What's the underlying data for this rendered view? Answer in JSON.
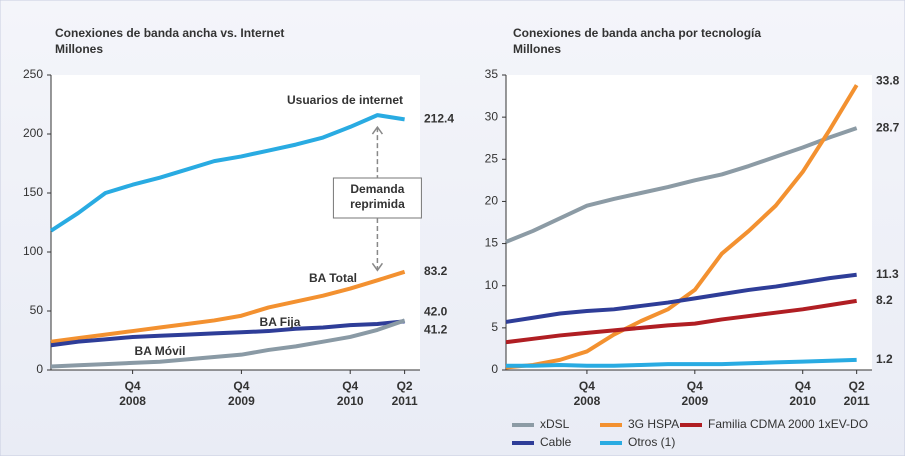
{
  "chart_data": [
    {
      "type": "line",
      "title": "Conexiones de banda ancha vs. Internet",
      "subtitle": "Millones",
      "categories": [
        null,
        null,
        null,
        [
          "Q4",
          "2008"
        ],
        null,
        null,
        null,
        [
          "Q4",
          "2009"
        ],
        null,
        null,
        null,
        [
          "Q4",
          "2010"
        ],
        null,
        [
          "Q2",
          "2011"
        ]
      ],
      "series": [
        {
          "name": "Usuarios de internet",
          "color": "#29abe2",
          "values": [
            118,
            133,
            150,
            157,
            163,
            170,
            177,
            181,
            186,
            191,
            197,
            206,
            216,
            212.4
          ],
          "value_labels": [
            null,
            null,
            null,
            null,
            null,
            null,
            null,
            null,
            null,
            null,
            null,
            null,
            null,
            "212.4"
          ]
        },
        {
          "name": "BA Total",
          "color": "#f39130",
          "values": [
            24,
            27,
            30,
            33,
            36,
            39,
            42,
            46,
            53,
            58,
            63,
            69,
            76,
            83.2
          ],
          "value_labels": [
            null,
            null,
            null,
            null,
            null,
            null,
            null,
            null,
            null,
            null,
            null,
            null,
            null,
            "83.2"
          ]
        },
        {
          "name": "BA Fija",
          "color": "#2e3d98",
          "values": [
            21,
            24,
            26,
            28,
            29,
            30,
            31,
            32,
            33,
            35,
            36,
            38,
            39,
            41.2
          ],
          "value_labels": [
            null,
            null,
            null,
            null,
            null,
            null,
            null,
            null,
            null,
            null,
            null,
            null,
            null,
            "41.2"
          ]
        },
        {
          "name": "BA Móvil",
          "color": "#8a9aa5",
          "values": [
            3,
            4,
            5,
            6,
            7,
            9,
            11,
            13,
            17,
            20,
            24,
            28,
            34,
            42
          ],
          "value_labels": [
            null,
            null,
            null,
            null,
            null,
            null,
            null,
            null,
            null,
            null,
            null,
            null,
            null,
            "42.0"
          ]
        }
      ],
      "annotation": [
        "Demanda",
        "reprimida"
      ],
      "ylim": [
        0,
        250
      ],
      "yticks": [
        0,
        50,
        100,
        150,
        200,
        250
      ],
      "grid": false,
      "legend": "inline"
    },
    {
      "type": "line",
      "title": "Conexiones de banda ancha por tecnología",
      "subtitle": "Millones",
      "categories": [
        null,
        null,
        null,
        [
          "Q4",
          "2008"
        ],
        null,
        null,
        null,
        [
          "Q4",
          "2009"
        ],
        null,
        null,
        null,
        [
          "Q4",
          "2010"
        ],
        null,
        [
          "Q2",
          "2011"
        ]
      ],
      "series": [
        {
          "name": "xDSL",
          "color": "#8c9ba5",
          "values": [
            15.2,
            16.5,
            18,
            19.5,
            20.3,
            21,
            21.7,
            22.5,
            23.2,
            24.2,
            25.3,
            26.4,
            27.6,
            28.7
          ],
          "value_labels": [
            null,
            null,
            null,
            null,
            null,
            null,
            null,
            null,
            null,
            null,
            null,
            null,
            null,
            "28.7"
          ]
        },
        {
          "name": "3G HSPA",
          "color": "#f39130",
          "values": [
            0.3,
            0.6,
            1.2,
            2.2,
            4.2,
            5.8,
            7.2,
            9.5,
            13.8,
            16.5,
            19.5,
            23.5,
            28.5,
            33.8
          ],
          "value_labels": [
            null,
            null,
            null,
            null,
            null,
            null,
            null,
            null,
            null,
            null,
            null,
            null,
            null,
            "33.8"
          ]
        },
        {
          "name": "Familia CDMA 2000 1xEV-DO",
          "color": "#b01e23",
          "values": [
            3.3,
            3.7,
            4.1,
            4.4,
            4.7,
            5,
            5.3,
            5.5,
            6,
            6.4,
            6.8,
            7.2,
            7.7,
            8.2
          ],
          "value_labels": [
            null,
            null,
            null,
            null,
            null,
            null,
            null,
            null,
            null,
            null,
            null,
            null,
            null,
            "8.2"
          ]
        },
        {
          "name": "Cable",
          "color": "#2e3d98",
          "values": [
            5.7,
            6.2,
            6.7,
            7,
            7.2,
            7.6,
            8,
            8.5,
            9,
            9.5,
            9.9,
            10.4,
            10.9,
            11.3
          ],
          "value_labels": [
            null,
            null,
            null,
            null,
            null,
            null,
            null,
            null,
            null,
            null,
            null,
            null,
            null,
            "11.3"
          ]
        },
        {
          "name": "Otros (1)",
          "color": "#29abe2",
          "values": [
            0.5,
            0.5,
            0.6,
            0.5,
            0.5,
            0.6,
            0.7,
            0.7,
            0.7,
            0.8,
            0.9,
            1,
            1.1,
            1.2
          ],
          "value_labels": [
            null,
            null,
            null,
            null,
            null,
            null,
            null,
            null,
            null,
            null,
            null,
            null,
            null,
            "1.2"
          ]
        }
      ],
      "ylim": [
        0,
        35
      ],
      "yticks": [
        0,
        5,
        10,
        15,
        20,
        25,
        30,
        35
      ],
      "grid": false,
      "legend": "bottom"
    }
  ]
}
